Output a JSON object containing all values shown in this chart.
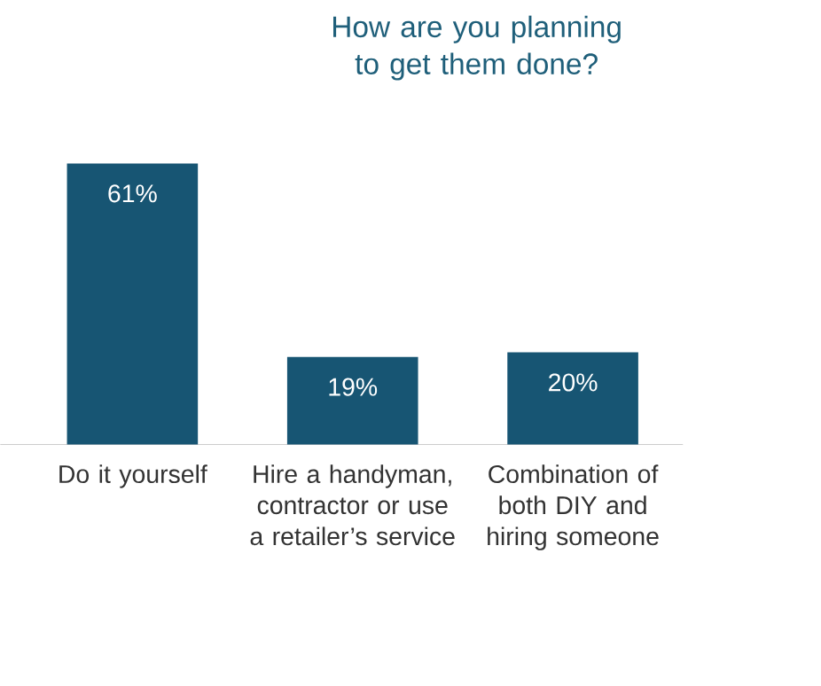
{
  "chart_data": {
    "type": "bar",
    "title": "How are you planning to get them done?",
    "categories": [
      "Do it yourself",
      "Hire a handyman, contractor or use a retailer’s service",
      "Combination of both DIY and hiring someone"
    ],
    "values": [
      61,
      19,
      20
    ],
    "value_labels": [
      "61%",
      "19%",
      "20%"
    ],
    "color": "#175573"
  }
}
